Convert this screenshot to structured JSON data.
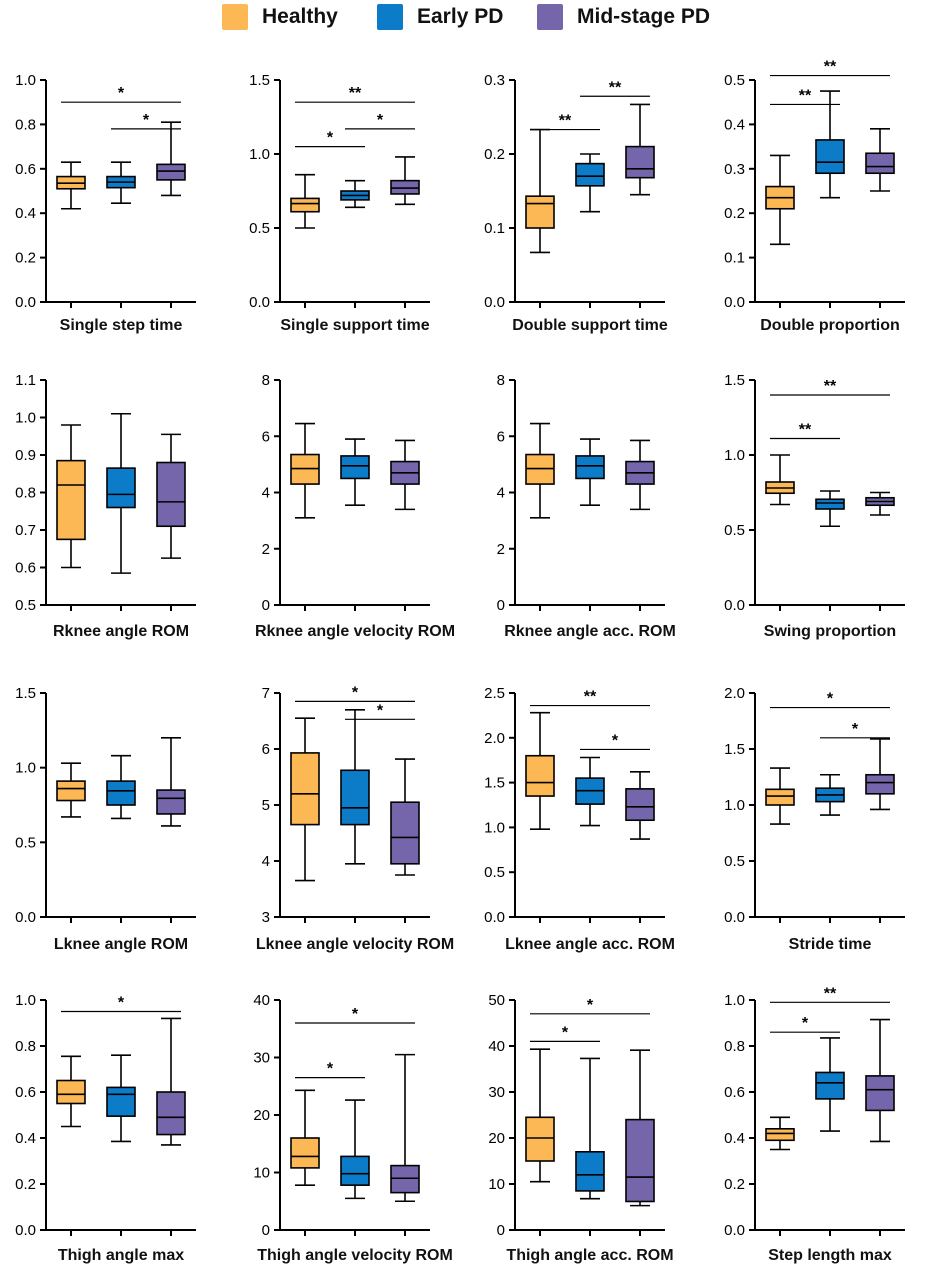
{
  "colors": {
    "healthy": "#FBB855",
    "early": "#0C7CC9",
    "mid": "#7566AC"
  },
  "legend": [
    {
      "label": "Healthy",
      "color": "#FBB855"
    },
    {
      "label": "Early PD",
      "color": "#0C7CC9"
    },
    {
      "label": "Mid-stage PD",
      "color": "#7566AC"
    }
  ],
  "chart_data": [
    {
      "type": "box",
      "title": "Single step time",
      "ylim": [
        0,
        1.0
      ],
      "ticks": [
        "0.0",
        "0.2",
        "0.4",
        "0.6",
        "0.8",
        "1.0"
      ],
      "boxes": [
        {
          "group": "Healthy",
          "min": 0.42,
          "q1": 0.51,
          "median": 0.535,
          "q3": 0.565,
          "max": 0.63
        },
        {
          "group": "Early PD",
          "min": 0.445,
          "q1": 0.515,
          "median": 0.54,
          "q3": 0.565,
          "max": 0.63
        },
        {
          "group": "Mid-stage PD",
          "min": 0.48,
          "q1": 0.55,
          "median": 0.59,
          "q3": 0.62,
          "max": 0.81
        }
      ],
      "sig": [
        {
          "from": 0,
          "to": 2,
          "y": 0.9,
          "label": "*"
        },
        {
          "from": 1,
          "to": 2,
          "y": 0.78,
          "label": "*"
        }
      ]
    },
    {
      "type": "box",
      "title": "Single support time",
      "ylim": [
        0,
        1.5
      ],
      "ticks": [
        "0.0",
        "0.5",
        "1.0",
        "1.5"
      ],
      "boxes": [
        {
          "group": "Healthy",
          "min": 0.5,
          "q1": 0.61,
          "median": 0.665,
          "q3": 0.7,
          "max": 0.86
        },
        {
          "group": "Early PD",
          "min": 0.64,
          "q1": 0.69,
          "median": 0.72,
          "q3": 0.75,
          "max": 0.82
        },
        {
          "group": "Mid-stage PD",
          "min": 0.66,
          "q1": 0.73,
          "median": 0.77,
          "q3": 0.82,
          "max": 0.98
        }
      ],
      "sig": [
        {
          "from": 0,
          "to": 2,
          "y": 1.35,
          "label": "**"
        },
        {
          "from": 0,
          "to": 1,
          "y": 1.05,
          "label": "*"
        },
        {
          "from": 1,
          "to": 2,
          "y": 1.17,
          "label": "*"
        }
      ]
    },
    {
      "type": "box",
      "title": "Double support time",
      "ylim": [
        0,
        0.3
      ],
      "ticks": [
        "0.0",
        "0.1",
        "0.2",
        "0.3"
      ],
      "boxes": [
        {
          "group": "Healthy",
          "min": 0.067,
          "q1": 0.1,
          "median": 0.133,
          "q3": 0.143,
          "max": 0.233
        },
        {
          "group": "Early PD",
          "min": 0.122,
          "q1": 0.157,
          "median": 0.17,
          "q3": 0.187,
          "max": 0.2
        },
        {
          "group": "Mid-stage PD",
          "min": 0.145,
          "q1": 0.168,
          "median": 0.18,
          "q3": 0.21,
          "max": 0.267
        }
      ],
      "sig": [
        {
          "from": 1,
          "to": 2,
          "y": 0.278,
          "label": "**"
        },
        {
          "from": 0,
          "to": 1,
          "y": 0.233,
          "label": "**"
        }
      ]
    },
    {
      "type": "box",
      "title": "Double proportion",
      "ylim": [
        0,
        0.5
      ],
      "ticks": [
        "0.0",
        "0.1",
        "0.2",
        "0.3",
        "0.4",
        "0.5"
      ],
      "boxes": [
        {
          "group": "Healthy",
          "min": 0.13,
          "q1": 0.21,
          "median": 0.235,
          "q3": 0.26,
          "max": 0.33
        },
        {
          "group": "Early PD",
          "min": 0.235,
          "q1": 0.29,
          "median": 0.315,
          "q3": 0.365,
          "max": 0.475
        },
        {
          "group": "Mid-stage PD",
          "min": 0.25,
          "q1": 0.29,
          "median": 0.305,
          "q3": 0.335,
          "max": 0.39
        }
      ],
      "sig": [
        {
          "from": 0,
          "to": 2,
          "y": 0.51,
          "label": "**"
        },
        {
          "from": 0,
          "to": 1,
          "y": 0.445,
          "label": "**"
        }
      ]
    },
    {
      "type": "box",
      "title": "Rknee angle ROM",
      "ylim": [
        0.5,
        1.1
      ],
      "ticks": [
        "0.5",
        "0.6",
        "0.7",
        "0.8",
        "0.9",
        "1.0",
        "1.1"
      ],
      "boxes": [
        {
          "group": "Healthy",
          "min": 0.6,
          "q1": 0.675,
          "median": 0.82,
          "q3": 0.885,
          "max": 0.98
        },
        {
          "group": "Early PD",
          "min": 0.585,
          "q1": 0.76,
          "median": 0.795,
          "q3": 0.865,
          "max": 1.01
        },
        {
          "group": "Mid-stage PD",
          "min": 0.625,
          "q1": 0.71,
          "median": 0.775,
          "q3": 0.88,
          "max": 0.955
        }
      ],
      "sig": []
    },
    {
      "type": "box",
      "title": "Rknee angle velocity ROM",
      "ylim": [
        0,
        8
      ],
      "ticks": [
        "0",
        "2",
        "4",
        "6",
        "8"
      ],
      "boxes": [
        {
          "group": "Healthy",
          "min": 3.1,
          "q1": 4.3,
          "median": 4.85,
          "q3": 5.35,
          "max": 6.45
        },
        {
          "group": "Early PD",
          "min": 3.55,
          "q1": 4.5,
          "median": 4.95,
          "q3": 5.3,
          "max": 5.9
        },
        {
          "group": "Mid-stage PD",
          "min": 3.4,
          "q1": 4.3,
          "median": 4.7,
          "q3": 5.1,
          "max": 5.85
        }
      ],
      "sig": []
    },
    {
      "type": "box",
      "title": "Rknee angle acc. ROM",
      "ylim": [
        0,
        8
      ],
      "ticks": [
        "0",
        "2",
        "4",
        "6",
        "8"
      ],
      "boxes": [
        {
          "group": "Healthy",
          "min": 3.1,
          "q1": 4.3,
          "median": 4.85,
          "q3": 5.35,
          "max": 6.45
        },
        {
          "group": "Early PD",
          "min": 3.55,
          "q1": 4.5,
          "median": 4.95,
          "q3": 5.3,
          "max": 5.9
        },
        {
          "group": "Mid-stage PD",
          "min": 3.4,
          "q1": 4.3,
          "median": 4.7,
          "q3": 5.1,
          "max": 5.85
        }
      ],
      "sig": []
    },
    {
      "type": "box",
      "title": "Swing proportion",
      "ylim": [
        0,
        1.5
      ],
      "ticks": [
        "0.0",
        "0.5",
        "1.0",
        "1.5"
      ],
      "boxes": [
        {
          "group": "Healthy",
          "min": 0.67,
          "q1": 0.745,
          "median": 0.78,
          "q3": 0.82,
          "max": 1.0
        },
        {
          "group": "Early PD",
          "min": 0.525,
          "q1": 0.64,
          "median": 0.68,
          "q3": 0.705,
          "max": 0.76
        },
        {
          "group": "Mid-stage PD",
          "min": 0.6,
          "q1": 0.665,
          "median": 0.69,
          "q3": 0.715,
          "max": 0.75
        }
      ],
      "sig": [
        {
          "from": 0,
          "to": 2,
          "y": 1.4,
          "label": "**"
        },
        {
          "from": 0,
          "to": 1,
          "y": 1.11,
          "label": "**"
        }
      ]
    },
    {
      "type": "box",
      "title": "Lknee angle ROM",
      "ylim": [
        0,
        1.5
      ],
      "ticks": [
        "0.0",
        "0.5",
        "1.0",
        "1.5"
      ],
      "boxes": [
        {
          "group": "Healthy",
          "min": 0.67,
          "q1": 0.78,
          "median": 0.86,
          "q3": 0.91,
          "max": 1.03
        },
        {
          "group": "Early PD",
          "min": 0.66,
          "q1": 0.75,
          "median": 0.845,
          "q3": 0.91,
          "max": 1.08
        },
        {
          "group": "Mid-stage PD",
          "min": 0.61,
          "q1": 0.69,
          "median": 0.795,
          "q3": 0.85,
          "max": 1.2
        }
      ],
      "sig": []
    },
    {
      "type": "box",
      "title": "Lknee angle velocity ROM",
      "ylim": [
        3,
        7
      ],
      "ticks": [
        "3",
        "4",
        "5",
        "6",
        "7"
      ],
      "boxes": [
        {
          "group": "Healthy",
          "min": 3.65,
          "q1": 4.65,
          "median": 5.2,
          "q3": 5.93,
          "max": 6.55
        },
        {
          "group": "Early PD",
          "min": 3.95,
          "q1": 4.65,
          "median": 4.95,
          "q3": 5.62,
          "max": 6.7
        },
        {
          "group": "Mid-stage PD",
          "min": 3.75,
          "q1": 3.95,
          "median": 4.42,
          "q3": 5.05,
          "max": 5.82
        }
      ],
      "sig": [
        {
          "from": 0,
          "to": 2,
          "y": 6.85,
          "label": "*"
        },
        {
          "from": 1,
          "to": 2,
          "y": 6.53,
          "label": "*"
        }
      ]
    },
    {
      "type": "box",
      "title": "Lknee angle acc. ROM",
      "ylim": [
        0,
        2.5
      ],
      "ticks": [
        "0.0",
        "0.5",
        "1.0",
        "1.5",
        "2.0",
        "2.5"
      ],
      "boxes": [
        {
          "group": "Healthy",
          "min": 0.98,
          "q1": 1.35,
          "median": 1.5,
          "q3": 1.8,
          "max": 2.28
        },
        {
          "group": "Early PD",
          "min": 1.02,
          "q1": 1.26,
          "median": 1.41,
          "q3": 1.55,
          "max": 1.78
        },
        {
          "group": "Mid-stage PD",
          "min": 0.87,
          "q1": 1.08,
          "median": 1.23,
          "q3": 1.43,
          "max": 1.62
        }
      ],
      "sig": [
        {
          "from": 0,
          "to": 2,
          "y": 2.36,
          "label": "**"
        },
        {
          "from": 1,
          "to": 2,
          "y": 1.87,
          "label": "*"
        }
      ]
    },
    {
      "type": "box",
      "title": "Stride time",
      "ylim": [
        0,
        2.0
      ],
      "ticks": [
        "0.0",
        "0.5",
        "1.0",
        "1.5",
        "2.0"
      ],
      "boxes": [
        {
          "group": "Healthy",
          "min": 0.83,
          "q1": 1.0,
          "median": 1.08,
          "q3": 1.14,
          "max": 1.33
        },
        {
          "group": "Early PD",
          "min": 0.91,
          "q1": 1.03,
          "median": 1.09,
          "q3": 1.15,
          "max": 1.27
        },
        {
          "group": "Mid-stage PD",
          "min": 0.96,
          "q1": 1.1,
          "median": 1.2,
          "q3": 1.27,
          "max": 1.59
        }
      ],
      "sig": [
        {
          "from": 0,
          "to": 2,
          "y": 1.87,
          "label": "*"
        },
        {
          "from": 1,
          "to": 2,
          "y": 1.6,
          "label": "*"
        }
      ]
    },
    {
      "type": "box",
      "title": "Thigh angle max",
      "ylim": [
        0,
        1.0
      ],
      "ticks": [
        "0.0",
        "0.2",
        "0.4",
        "0.6",
        "0.8",
        "1.0"
      ],
      "boxes": [
        {
          "group": "Healthy",
          "min": 0.45,
          "q1": 0.55,
          "median": 0.59,
          "q3": 0.65,
          "max": 0.755
        },
        {
          "group": "Early PD",
          "min": 0.385,
          "q1": 0.495,
          "median": 0.59,
          "q3": 0.62,
          "max": 0.76
        },
        {
          "group": "Mid-stage PD",
          "min": 0.37,
          "q1": 0.415,
          "median": 0.49,
          "q3": 0.6,
          "max": 0.92
        }
      ],
      "sig": [
        {
          "from": 0,
          "to": 2,
          "y": 0.95,
          "label": "*"
        }
      ]
    },
    {
      "type": "box",
      "title": "Thigh angle velocity ROM",
      "ylim": [
        0,
        40
      ],
      "ticks": [
        "0",
        "10",
        "20",
        "30",
        "40"
      ],
      "boxes": [
        {
          "group": "Healthy",
          "min": 7.8,
          "q1": 10.8,
          "median": 12.8,
          "q3": 16,
          "max": 24.3
        },
        {
          "group": "Early PD",
          "min": 5.5,
          "q1": 7.8,
          "median": 9.8,
          "q3": 12.8,
          "max": 22.6
        },
        {
          "group": "Mid-stage PD",
          "min": 5.0,
          "q1": 6.5,
          "median": 9.0,
          "q3": 11.2,
          "max": 30.5
        }
      ],
      "sig": [
        {
          "from": 0,
          "to": 2,
          "y": 36,
          "label": "*"
        },
        {
          "from": 0,
          "to": 1,
          "y": 26.5,
          "label": "*"
        }
      ]
    },
    {
      "type": "box",
      "title": "Thigh angle acc. ROM",
      "ylim": [
        0,
        50
      ],
      "ticks": [
        "0",
        "10",
        "20",
        "30",
        "40",
        "50"
      ],
      "boxes": [
        {
          "group": "Healthy",
          "min": 10.5,
          "q1": 15,
          "median": 20,
          "q3": 24.5,
          "max": 39.3
        },
        {
          "group": "Early PD",
          "min": 6.8,
          "q1": 8.5,
          "median": 12,
          "q3": 17,
          "max": 37.3
        },
        {
          "group": "Mid-stage PD",
          "min": 5.3,
          "q1": 6.2,
          "median": 11.5,
          "q3": 24,
          "max": 39.1
        }
      ],
      "sig": [
        {
          "from": 0,
          "to": 2,
          "y": 47,
          "label": "*"
        },
        {
          "from": 0,
          "to": 1,
          "y": 41,
          "label": "*"
        }
      ]
    },
    {
      "type": "box",
      "title": "Step length max",
      "ylim": [
        0,
        1.0
      ],
      "ticks": [
        "0.0",
        "0.2",
        "0.4",
        "0.6",
        "0.8",
        "1.0"
      ],
      "boxes": [
        {
          "group": "Healthy",
          "min": 0.35,
          "q1": 0.39,
          "median": 0.42,
          "q3": 0.44,
          "max": 0.49
        },
        {
          "group": "Early PD",
          "min": 0.43,
          "q1": 0.57,
          "median": 0.64,
          "q3": 0.685,
          "max": 0.835
        },
        {
          "group": "Mid-stage PD",
          "min": 0.385,
          "q1": 0.52,
          "median": 0.61,
          "q3": 0.67,
          "max": 0.915
        }
      ],
      "sig": [
        {
          "from": 0,
          "to": 2,
          "y": 0.99,
          "label": "**"
        },
        {
          "from": 0,
          "to": 1,
          "y": 0.86,
          "label": "*"
        }
      ]
    }
  ]
}
